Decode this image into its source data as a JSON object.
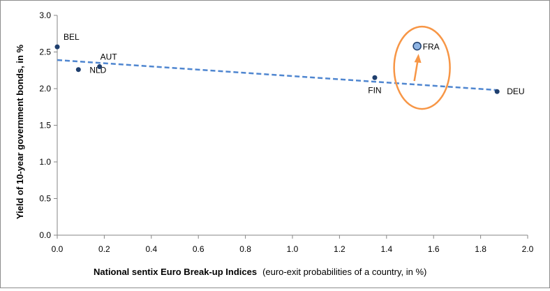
{
  "chart_data": {
    "type": "scatter",
    "title": "",
    "xlabel_bold": "National sentix Euro Break-up Indices",
    "xlabel_rest": "(euro-exit probabilities of a country, in %)",
    "ylabel": "Yield of 10-year government bonds, in %",
    "xlim": [
      0.0,
      2.0
    ],
    "ylim": [
      0.0,
      3.0
    ],
    "x_ticks": [
      "0.0",
      "0.2",
      "0.4",
      "0.6",
      "0.8",
      "1.0",
      "1.2",
      "1.4",
      "1.6",
      "1.8",
      "2.0"
    ],
    "y_ticks": [
      "0.0",
      "0.5",
      "1.0",
      "1.5",
      "2.0",
      "2.5",
      "3.0"
    ],
    "grid": false,
    "legend": "none",
    "points": [
      {
        "label": "BEL",
        "x": 0.0,
        "y": 2.57
      },
      {
        "label": "NLD",
        "x": 0.09,
        "y": 2.26
      },
      {
        "label": "AUT",
        "x": 0.18,
        "y": 2.3
      },
      {
        "label": "FIN",
        "x": 1.35,
        "y": 2.15
      },
      {
        "label": "FRA",
        "x": 1.53,
        "y": 2.58,
        "highlight": true
      },
      {
        "label": "DEU",
        "x": 1.87,
        "y": 1.96
      }
    ],
    "trendline": {
      "x": [
        0.0,
        1.87
      ],
      "y": [
        2.39,
        1.98
      ],
      "style": "dashed"
    },
    "colors": {
      "point": "#1f3f6e",
      "point_highlight": "#8eb4e3",
      "trendline": "#4f86d0",
      "annotation": "#f79646",
      "axis": "#868686"
    }
  }
}
